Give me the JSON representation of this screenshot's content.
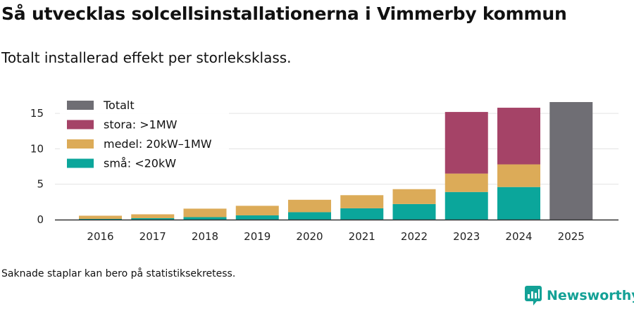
{
  "header": {
    "title": "Så utvecklas solcellsinstallationerna i Vimmerby kommun",
    "subtitle": "Totalt installerad effekt per storleksklass."
  },
  "footer": {
    "note": "Saknade staplar kan bero på statistiksekretess.",
    "brand": "Newsworthy"
  },
  "colors": {
    "small": "#0ba69b",
    "medium": "#dcab58",
    "large": "#a54367",
    "total": "#6f6e74",
    "brand": "#13a196"
  },
  "chart_data": {
    "type": "bar",
    "stacked": true,
    "title": "Så utvecklas solcellsinstallationerna i Vimmerby kommun",
    "subtitle": "Totalt installerad effekt per storleksklass.",
    "xlabel": "",
    "ylabel": "",
    "ylim": [
      0,
      16.5
    ],
    "yticks": [
      0,
      5,
      10,
      15
    ],
    "grid": true,
    "legend_position": "top-left",
    "categories": [
      "2016",
      "2017",
      "2018",
      "2019",
      "2020",
      "2021",
      "2022",
      "2023",
      "2024",
      "2025"
    ],
    "legend": [
      "Totalt",
      "stora: >1MW",
      "medel: 20kW–1MW",
      "små: <20kW"
    ],
    "series": [
      {
        "name": "små: <20kW",
        "color": "#0ba69b",
        "values": [
          0.1,
          0.2,
          0.35,
          0.6,
          1.05,
          1.6,
          2.2,
          3.9,
          4.6,
          null
        ]
      },
      {
        "name": "medel: 20kW–1MW",
        "color": "#dcab58",
        "values": [
          0.45,
          0.55,
          1.2,
          1.35,
          1.75,
          1.85,
          2.1,
          2.6,
          3.2,
          null
        ]
      },
      {
        "name": "stora: >1MW",
        "color": "#a54367",
        "values": [
          null,
          null,
          null,
          null,
          null,
          null,
          null,
          8.7,
          8.0,
          null
        ]
      },
      {
        "name": "Totalt",
        "color": "#6f6e74",
        "values": [
          null,
          null,
          null,
          null,
          null,
          null,
          null,
          null,
          null,
          16.6
        ]
      }
    ]
  }
}
